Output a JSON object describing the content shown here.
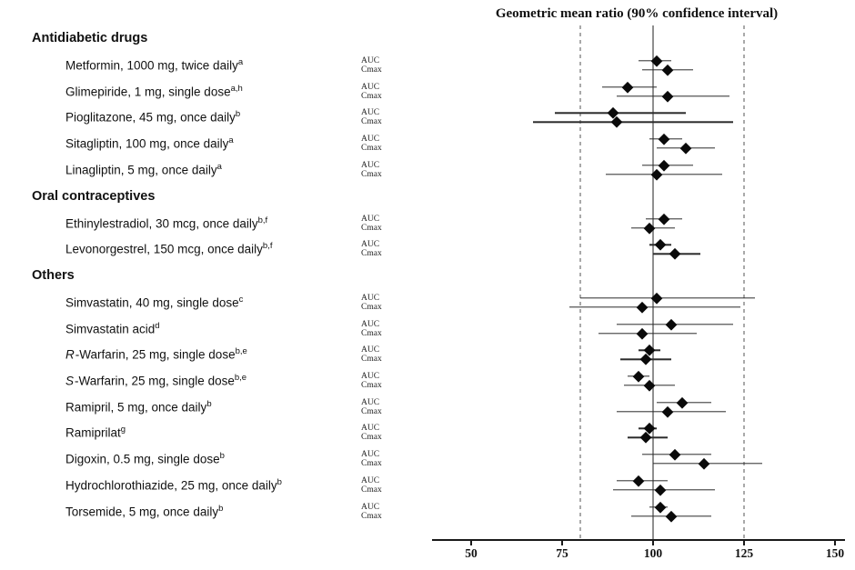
{
  "chart_data": {
    "type": "forest",
    "title": "Geometric mean ratio (90% confidence interval)",
    "xticks": [
      50,
      75,
      100,
      125,
      150
    ],
    "xlim": [
      39,
      152
    ],
    "reference_line_solid": 100,
    "reference_lines_dashed": [
      80,
      125
    ],
    "row_metric_labels": {
      "auc": "AUC",
      "cmax": "Cmax"
    },
    "groups": [
      {
        "name": "Antidiabetic drugs",
        "drugs": [
          {
            "pre_italic": "",
            "name": "Metformin, 1000 mg, twice daily",
            "sup": "a",
            "auc": {
              "est": 101,
              "lo": 96,
              "hi": 105
            },
            "cmax": {
              "est": 104,
              "lo": 97,
              "hi": 111
            }
          },
          {
            "pre_italic": "",
            "name": "Glimepiride, 1 mg, single dose",
            "sup": "a,h",
            "auc": {
              "est": 93,
              "lo": 86,
              "hi": 101
            },
            "cmax": {
              "est": 104,
              "lo": 90,
              "hi": 121
            }
          },
          {
            "pre_italic": "",
            "name": "Pioglitazone, 45 mg, once daily",
            "sup": "b",
            "auc": {
              "est": 89,
              "lo": 73,
              "hi": 109
            },
            "cmax": {
              "est": 90,
              "lo": 67,
              "hi": 122
            }
          },
          {
            "pre_italic": "",
            "name": "Sitagliptin, 100 mg, once daily",
            "sup": "a",
            "auc": {
              "est": 103,
              "lo": 99,
              "hi": 108
            },
            "cmax": {
              "est": 109,
              "lo": 101,
              "hi": 117
            }
          },
          {
            "pre_italic": "",
            "name": "Linagliptin, 5 mg, once daily",
            "sup": "a",
            "auc": {
              "est": 103,
              "lo": 97,
              "hi": 111
            },
            "cmax": {
              "est": 101,
              "lo": 87,
              "hi": 119
            }
          }
        ]
      },
      {
        "name": "Oral contraceptives",
        "drugs": [
          {
            "pre_italic": "",
            "name": "Ethinylestradiol, 30 mcg, once daily",
            "sup": "b,f",
            "auc": {
              "est": 103,
              "lo": 98,
              "hi": 108
            },
            "cmax": {
              "est": 99,
              "lo": 94,
              "hi": 106
            }
          },
          {
            "pre_italic": "",
            "name": "Levonorgestrel, 150 mcg, once daily",
            "sup": "b,f",
            "auc": {
              "est": 102,
              "lo": 99,
              "hi": 105
            },
            "cmax": {
              "est": 106,
              "lo": 100,
              "hi": 113
            }
          }
        ]
      },
      {
        "name": "Others",
        "drugs": [
          {
            "pre_italic": "",
            "name": "Simvastatin, 40 mg, single dose",
            "sup": "c",
            "auc": {
              "est": 101,
              "lo": 80,
              "hi": 128
            },
            "cmax": {
              "est": 97,
              "lo": 77,
              "hi": 124
            }
          },
          {
            "pre_italic": "",
            "name": "Simvastatin acid",
            "sup": "d",
            "auc": {
              "est": 105,
              "lo": 90,
              "hi": 122
            },
            "cmax": {
              "est": 97,
              "lo": 85,
              "hi": 112
            }
          },
          {
            "pre_italic": "R",
            "name": "-Warfarin, 25 mg, single dose",
            "sup": "b,e",
            "auc": {
              "est": 99,
              "lo": 96,
              "hi": 102
            },
            "cmax": {
              "est": 98,
              "lo": 91,
              "hi": 105
            }
          },
          {
            "pre_italic": "S",
            "name": "-Warfarin, 25 mg, single dose",
            "sup": "b,e",
            "auc": {
              "est": 96,
              "lo": 93,
              "hi": 99
            },
            "cmax": {
              "est": 99,
              "lo": 92,
              "hi": 106
            }
          },
          {
            "pre_italic": "",
            "name": "Ramipril, 5 mg, once daily",
            "sup": "b",
            "auc": {
              "est": 108,
              "lo": 101,
              "hi": 116
            },
            "cmax": {
              "est": 104,
              "lo": 90,
              "hi": 120
            }
          },
          {
            "pre_italic": "",
            "name": "Ramiprilat",
            "sup": "g",
            "auc": {
              "est": 99,
              "lo": 96,
              "hi": 101
            },
            "cmax": {
              "est": 98,
              "lo": 93,
              "hi": 104
            }
          },
          {
            "pre_italic": "",
            "name": "Digoxin, 0.5 mg, single dose",
            "sup": "b",
            "auc": {
              "est": 106,
              "lo": 97,
              "hi": 116
            },
            "cmax": {
              "est": 114,
              "lo": 100,
              "hi": 130
            }
          },
          {
            "pre_italic": "",
            "name": "Hydrochlorothiazide, 25 mg, once daily",
            "sup": "b",
            "auc": {
              "est": 96,
              "lo": 90,
              "hi": 104
            },
            "cmax": {
              "est": 102,
              "lo": 89,
              "hi": 117
            }
          },
          {
            "pre_italic": "",
            "name": "Torsemide, 5 mg, once daily",
            "sup": "b",
            "auc": {
              "est": 102,
              "lo": 99,
              "hi": 104
            },
            "cmax": {
              "est": 105,
              "lo": 94,
              "hi": 116
            }
          }
        ]
      }
    ],
    "colors": {
      "marker": "#0a0a0a",
      "ci": "#2b2b2b",
      "ref_solid": "#8f8f8f",
      "ref_dashed": "#a9a9a9",
      "axis": "#1a1a1a"
    }
  }
}
